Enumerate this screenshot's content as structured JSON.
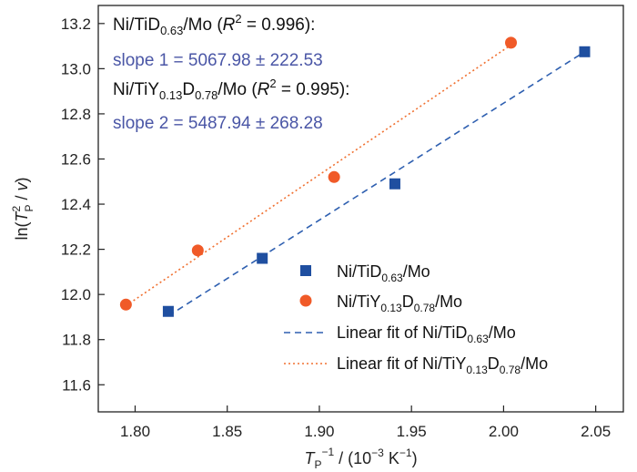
{
  "chart_data": {
    "type": "scatter",
    "xlim": [
      1.78,
      2.065
    ],
    "ylim": [
      11.48,
      13.28
    ],
    "x_ticks": [
      1.8,
      1.85,
      1.9,
      1.95,
      2.0,
      2.05
    ],
    "x_tick_labels": [
      "1.80",
      "1.85",
      "1.90",
      "1.95",
      "2.00",
      "2.05"
    ],
    "y_ticks": [
      11.6,
      11.8,
      12.0,
      12.2,
      12.4,
      12.6,
      12.8,
      13.0,
      13.2
    ],
    "y_tick_labels": [
      "11.6",
      "11.8",
      "12.0",
      "12.2",
      "12.4",
      "12.6",
      "12.8",
      "13.0",
      "13.2"
    ],
    "xlabel": {
      "base": "T",
      "sub": "P",
      "sup": "−1",
      "rest": " / (10",
      "exp": "−3",
      "unit": " K",
      "unit_exp": "−1",
      "close": ")"
    },
    "ylabel": {
      "pre": "ln(",
      "base": "T",
      "sup": "2",
      "sub": "P",
      "mid": " / ",
      "var": "v",
      "close": ")"
    },
    "grid": false,
    "legend_position": "center-right",
    "series": [
      {
        "name": {
          "pre": "Ni/TiD",
          "sub": "0.63",
          "post": "/Mo"
        },
        "marker": "square",
        "color": "#1f4fa0",
        "x": [
          1.818,
          1.869,
          1.941,
          2.044
        ],
        "y": [
          11.925,
          12.16,
          12.49,
          13.075
        ]
      },
      {
        "name": {
          "pre": "Ni/TiY",
          "sub": "0.13",
          "mid": "D",
          "sub2": "0.78",
          "post": "/Mo"
        },
        "marker": "circle",
        "color": "#f05a28",
        "x": [
          1.795,
          1.834,
          1.908,
          2.004
        ],
        "y": [
          11.955,
          12.195,
          12.52,
          13.115
        ]
      }
    ],
    "fits": [
      {
        "name": {
          "pre": "Linear fit of Ni/TiD",
          "sub": "0.63",
          "post": "/Mo"
        },
        "style": "dashed",
        "color": "#2e5fb0",
        "x": [
          1.818,
          2.044
        ],
        "y": [
          11.905,
          13.075
        ]
      },
      {
        "name": {
          "pre": "Linear fit of Ni/TiY",
          "sub": "0.13",
          "mid": "D",
          "sub2": "0.78",
          "post": "/Mo"
        },
        "style": "dotted",
        "color": "#f07030",
        "x": [
          1.795,
          2.004
        ],
        "y": [
          11.95,
          13.105
        ]
      }
    ],
    "annotations": [
      {
        "pre": "Ni/TiD",
        "sub": "0.63",
        "mid": "/Mo (",
        "ital": "R",
        "sup": "2",
        "post": " = 0.996):"
      },
      {
        "text": "slope 1 = 5067.98 ± 222.53"
      },
      {
        "pre": "Ni/TiY",
        "sub": "0.13",
        "mid": "D",
        "sub2": "0.78",
        "mid2": "/Mo (",
        "ital": "R",
        "sup": "2",
        "post": " = 0.995):"
      },
      {
        "text": "slope 2 = 5487.94 ± 268.28"
      }
    ]
  }
}
